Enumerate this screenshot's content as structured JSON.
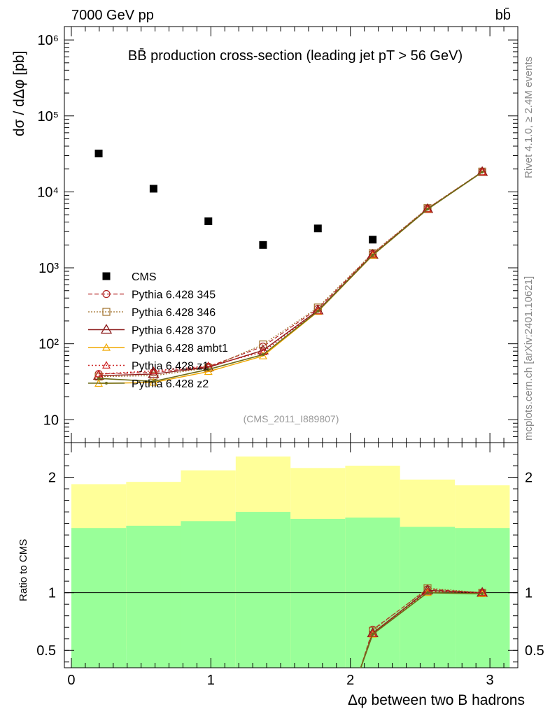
{
  "header": {
    "left": "7000 GeV pp",
    "right": "bb̄"
  },
  "side_labels": {
    "rivet": "Rivet 4.1.0, ≥ 2.4M events",
    "mcplots": "mcplots.cern.ch [arXiv:2401.10621]"
  },
  "analysis_tag": "(CMS_2011_I889807)",
  "colors": {
    "data": "#000000",
    "band_outer": "#ffff99",
    "band_inner": "#99ff99",
    "p345": "#b22222",
    "p346": "#a0702a",
    "p370": "#8b1a1a",
    "ambt1": "#f0a800",
    "z1": "#cc2020",
    "z2": "#6b6b1a"
  },
  "chart_data": [
    {
      "type": "scatter",
      "panel": "main",
      "title": "BB̄ production cross-section (leading jet pT > 56 GeV)",
      "ylabel": "dσ / dΔφ [pb]",
      "xlabel": "",
      "yscale": "log",
      "xlim": [
        -0.05,
        3.2
      ],
      "ylim": [
        5,
        1500000
      ],
      "y_ticks": [
        {
          "value": 10,
          "label": "10"
        },
        {
          "value": 100,
          "label": "10²"
        },
        {
          "value": 1000,
          "label": "10³"
        },
        {
          "value": 10000,
          "label": "10⁴"
        },
        {
          "value": 100000,
          "label": "10⁵"
        },
        {
          "value": 1000000,
          "label": "10⁶"
        }
      ],
      "x": [
        0.196,
        0.589,
        0.982,
        1.374,
        1.767,
        2.16,
        2.553,
        2.945
      ],
      "series": [
        {
          "name": "CMS",
          "marker": "square",
          "values": [
            32000,
            11000,
            4100,
            2000,
            3300,
            2350,
            null,
            null
          ]
        },
        {
          "name": "Pythia 6.428 345",
          "marker": "circle",
          "line": "dashed",
          "values": [
            40,
            42,
            50,
            92,
            290,
            1530,
            6050,
            18400
          ]
        },
        {
          "name": "Pythia 6.428 346",
          "marker": "square-open",
          "line": "dotted",
          "values": [
            37,
            38,
            48,
            98,
            300,
            1560,
            6100,
            18500
          ]
        },
        {
          "name": "Pythia 6.428 370",
          "marker": "triangle",
          "line": "solid",
          "values": [
            38,
            40,
            49,
            82,
            275,
            1490,
            5950,
            18300
          ]
        },
        {
          "name": "Pythia 6.428 ambt1",
          "marker": "triangle-small",
          "line": "solid",
          "values": [
            30,
            31,
            43,
            69,
            265,
            1460,
            5900,
            18200
          ]
        },
        {
          "name": "Pythia 6.428 z1",
          "marker": "triangle-small",
          "line": "dotted",
          "values": [
            40,
            44,
            51,
            78,
            270,
            1500,
            5950,
            18300
          ]
        },
        {
          "name": "Pythia 6.428 z2",
          "marker": "dot",
          "line": "solid",
          "values": [
            35,
            32,
            46,
            72,
            268,
            1470,
            5900,
            18200
          ]
        }
      ]
    },
    {
      "type": "line",
      "panel": "ratio",
      "ylabel": "Ratio to CMS",
      "xlabel": "Δφ between two B hadrons",
      "xlim": [
        -0.05,
        3.2
      ],
      "ylim": [
        0.35,
        2.3
      ],
      "x_ticks": [
        {
          "value": 0,
          "label": "0"
        },
        {
          "value": 1,
          "label": "1"
        },
        {
          "value": 2,
          "label": "2"
        },
        {
          "value": 3,
          "label": "3"
        }
      ],
      "y_ticks": [
        {
          "value": 0.5,
          "label": "0.5"
        },
        {
          "value": 1,
          "label": "1"
        },
        {
          "value": 2,
          "label": "2"
        }
      ],
      "bin_edges": [
        0,
        0.393,
        0.785,
        1.178,
        1.571,
        1.963,
        2.356,
        2.749,
        3.142
      ],
      "band_outer_hi": [
        1.94,
        1.96,
        2.06,
        2.18,
        2.08,
        2.1,
        1.98,
        1.93
      ],
      "band_outer_lo": [
        0.54,
        0.51,
        0.43,
        0.35,
        0.4,
        0.33,
        0.49,
        0.54
      ],
      "band_inner_hi": [
        1.56,
        1.58,
        1.62,
        1.7,
        1.64,
        1.65,
        1.57,
        1.56
      ],
      "band_inner_lo": [
        0.35,
        0.35,
        0.35,
        0.35,
        0.35,
        0.35,
        0.35,
        0.35
      ],
      "x": [
        2.06,
        2.16,
        2.553,
        2.945
      ],
      "series": [
        {
          "name": "Pythia 6.428 345",
          "values": [
            0.3,
            0.68,
            1.03,
            1.0
          ]
        },
        {
          "name": "Pythia 6.428 346",
          "values": [
            0.3,
            0.67,
            1.04,
            1.0
          ]
        },
        {
          "name": "Pythia 6.428 370",
          "values": [
            0.3,
            0.65,
            1.02,
            1.0
          ]
        },
        {
          "name": "Pythia 6.428 ambt1",
          "values": [
            0.3,
            0.64,
            1.0,
            0.99
          ]
        },
        {
          "name": "Pythia 6.428 z1",
          "values": [
            0.3,
            0.645,
            1.01,
            1.0
          ]
        },
        {
          "name": "Pythia 6.428 z2",
          "values": [
            0.3,
            0.64,
            1.0,
            0.99
          ]
        }
      ]
    }
  ]
}
